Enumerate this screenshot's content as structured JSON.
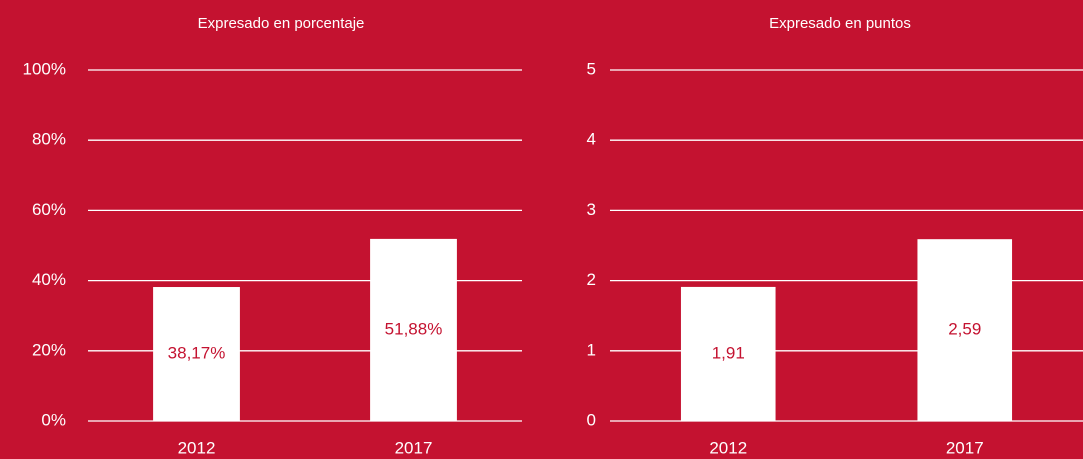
{
  "chart_data": [
    {
      "type": "bar",
      "title": "Expresado en porcentaje",
      "categories": [
        "2012",
        "2017"
      ],
      "values": [
        38.17,
        51.88
      ],
      "value_labels": [
        "38,17%",
        "51,88%"
      ],
      "color": "#ffffff",
      "ylim": [
        0,
        100
      ],
      "yticks": [
        {
          "value": 0,
          "label": "0%"
        },
        {
          "value": 20,
          "label": "20%"
        },
        {
          "value": 40,
          "label": "40%"
        },
        {
          "value": 60,
          "label": "60%"
        },
        {
          "value": 80,
          "label": "80%"
        },
        {
          "value": 100,
          "label": "100%"
        }
      ],
      "grid": true
    },
    {
      "type": "bar",
      "title": "Expresado en puntos",
      "categories": [
        "2012",
        "2017"
      ],
      "values": [
        1.91,
        2.59
      ],
      "value_labels": [
        "1,91",
        "2,59"
      ],
      "color": "#ffffff",
      "ylim": [
        0,
        5
      ],
      "yticks": [
        0,
        1,
        2,
        3,
        4,
        5
      ],
      "grid": true
    }
  ]
}
